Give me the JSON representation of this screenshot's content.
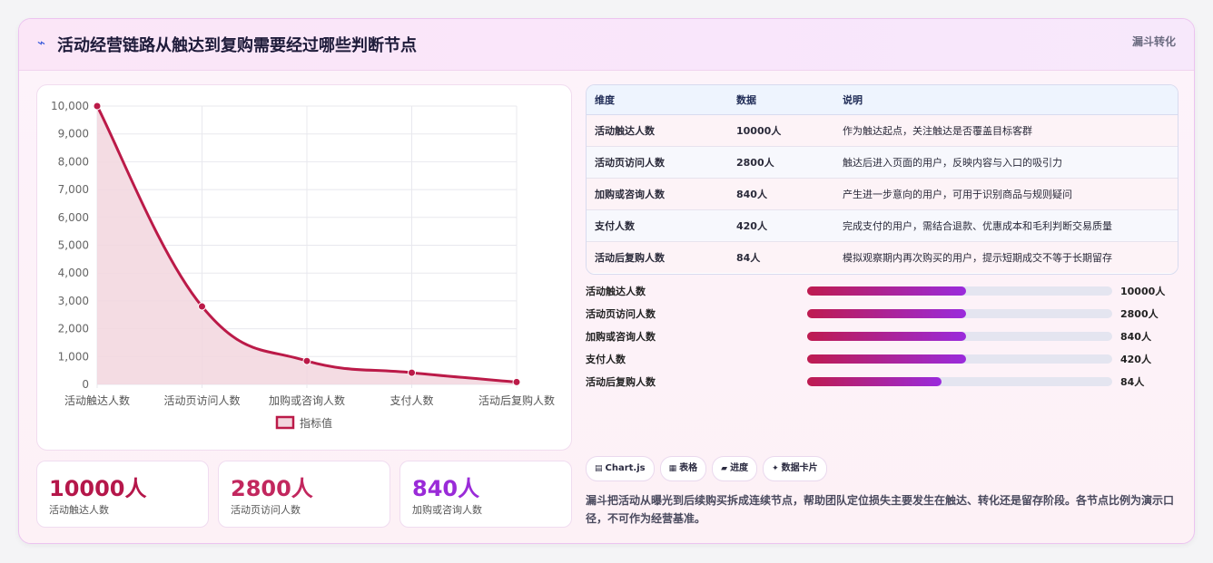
{
  "header": {
    "title_icon": "⌁",
    "title": "活动经营链路从触达到复购需要经过哪些判断节点",
    "tag": "漏斗转化"
  },
  "chart_data": {
    "type": "line",
    "categories": [
      "活动触达人数",
      "活动页访问人数",
      "加购或咨询人数",
      "支付人数",
      "活动后复购人数"
    ],
    "series": [
      {
        "name": "指标值",
        "values": [
          10000,
          2800,
          840,
          420,
          84
        ]
      }
    ],
    "yticks": [
      "0",
      "1,000",
      "2,000",
      "3,000",
      "4,000",
      "5,000",
      "6,000",
      "7,000",
      "8,000",
      "9,000",
      "10,000"
    ],
    "ylim": [
      0,
      10000
    ],
    "grid": true,
    "legend": "bottom",
    "colors": {
      "line": "#bb1a48",
      "fill": "#f2d6de"
    }
  },
  "stats": [
    {
      "value": "10000人",
      "label": "活动触达人数",
      "color": "#b5174a"
    },
    {
      "value": "2800人",
      "label": "活动页访问人数",
      "color": "#c2275e"
    },
    {
      "value": "840人",
      "label": "加购或咨询人数",
      "color": "#9a2bd8"
    }
  ],
  "table": {
    "headers": [
      "维度",
      "数据",
      "说明"
    ],
    "rows": [
      [
        "活动触达人数",
        "10000人",
        "作为触达起点，关注触达是否覆盖目标客群"
      ],
      [
        "活动页访问人数",
        "2800人",
        "触达后进入页面的用户，反映内容与入口的吸引力"
      ],
      [
        "加购或咨询人数",
        "840人",
        "产生进一步意向的用户，可用于识别商品与规则疑问"
      ],
      [
        "支付人数",
        "420人",
        "完成支付的用户，需结合退款、优惠成本和毛利判断交易质量"
      ],
      [
        "活动后复购人数",
        "84人",
        "模拟观察期内再次购买的用户，提示短期成交不等于长期留存"
      ]
    ]
  },
  "progress": [
    {
      "label": "活动触达人数",
      "value": "10000人",
      "fraction": 0.52
    },
    {
      "label": "活动页访问人数",
      "value": "2800人",
      "fraction": 0.52
    },
    {
      "label": "加购或咨询人数",
      "value": "840人",
      "fraction": 0.52
    },
    {
      "label": "支付人数",
      "value": "420人",
      "fraction": 0.52
    },
    {
      "label": "活动后复购人数",
      "value": "84人",
      "fraction": 0.44
    }
  ],
  "chips": [
    {
      "icon": "▤",
      "label": "Chart.js"
    },
    {
      "icon": "▦",
      "label": "表格"
    },
    {
      "icon": "▰",
      "label": "进度"
    },
    {
      "icon": "✦",
      "label": "数据卡片"
    }
  ],
  "note": "漏斗把活动从曝光到后续购买拆成连续节点，帮助团队定位损失主要发生在触达、转化还是留存阶段。各节点比例为演示口径，不可作为经营基准。"
}
